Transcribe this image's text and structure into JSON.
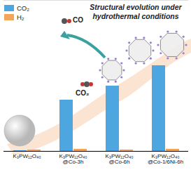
{
  "chart_data": {
    "type": "bar",
    "title": "Structural evolution under hydrothermal conditions",
    "categories": [
      "K₃PW₁₂O₄₀",
      "K₃PW₁₂O₄₀@Co-3h",
      "K₃PW₁₂O₄₀@Co-6h",
      "K₃PW₁₂O₄₀@Co-1/6Ni-6h"
    ],
    "series": [
      {
        "name": "CO₂",
        "color": "#4da6e0",
        "values": [
          1,
          73,
          93,
          122
        ]
      },
      {
        "name": "H₂",
        "color": "#f2a65a",
        "values": [
          2,
          3,
          2,
          3
        ]
      }
    ],
    "ylim": [
      0,
      215
    ],
    "tick_labels": "x",
    "legend": "top-left",
    "annotations": [
      "CO",
      "CO₂"
    ]
  }
}
